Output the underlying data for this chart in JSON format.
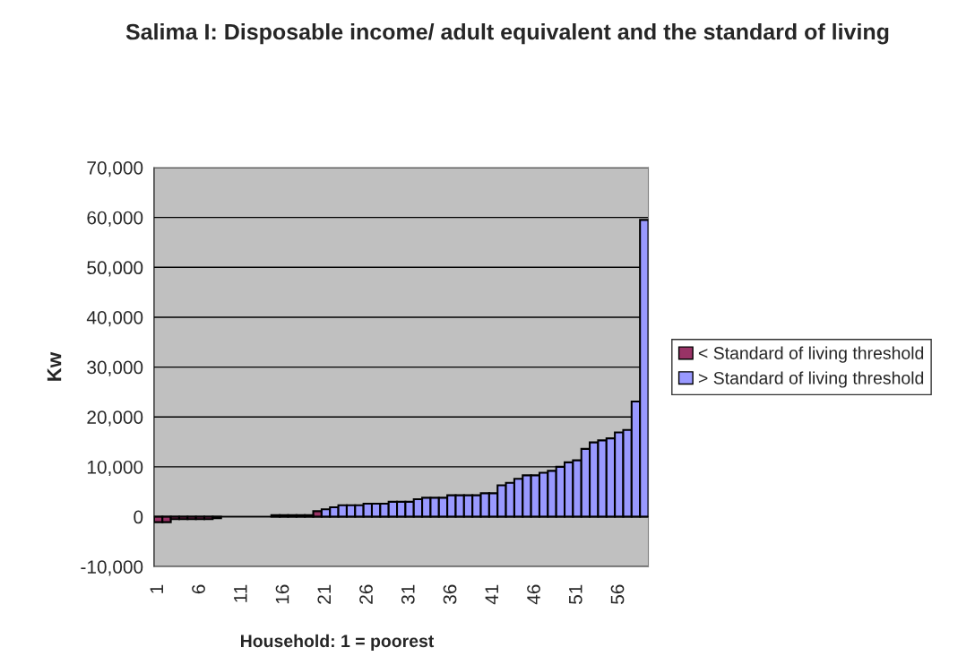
{
  "chart_data": {
    "type": "bar",
    "title": "Salima I: Disposable income/ adult equivalent and the standard of living",
    "xlabel": "Household: 1 = poorest",
    "ylabel": "Kw",
    "categories": [
      "1",
      null,
      null,
      null,
      null,
      "6",
      null,
      null,
      null,
      null,
      "11",
      null,
      null,
      null,
      null,
      "16",
      null,
      null,
      null,
      null,
      "21",
      null,
      null,
      null,
      null,
      "26",
      null,
      null,
      null,
      null,
      "31",
      null,
      null,
      null,
      null,
      "36",
      null,
      null,
      null,
      null,
      "41",
      null,
      null,
      null,
      null,
      "46",
      null,
      null,
      null,
      null,
      "51",
      null,
      null,
      null,
      null,
      "56",
      null,
      null,
      null
    ],
    "series": [
      {
        "name": "< Standard of living threshold",
        "color": "#993366",
        "values": [
          -1100,
          -1100,
          -500,
          -500,
          -500,
          -500,
          -500,
          -300,
          null,
          null,
          null,
          null,
          null,
          null,
          null,
          null,
          null,
          null,
          null,
          1100,
          null,
          null,
          null,
          null,
          null,
          null,
          null,
          null,
          null,
          null,
          null,
          null,
          null,
          null,
          null,
          null,
          null,
          null,
          null,
          null,
          null,
          null,
          null,
          null,
          null,
          null,
          null,
          null,
          null,
          null,
          null,
          null,
          null,
          null,
          null,
          null,
          null,
          null,
          null
        ]
      },
      {
        "name": "> Standard of living threshold",
        "color": "#9999ff",
        "values": [
          null,
          null,
          null,
          null,
          null,
          null,
          null,
          null,
          null,
          null,
          null,
          null,
          null,
          null,
          300,
          300,
          300,
          300,
          300,
          null,
          1500,
          1900,
          2300,
          2300,
          2300,
          2600,
          2600,
          2600,
          3000,
          3000,
          3000,
          3500,
          3800,
          3800,
          3800,
          4300,
          4300,
          4300,
          4300,
          4700,
          4700,
          6300,
          6800,
          7600,
          8300,
          8300,
          8800,
          9200,
          10000,
          10900,
          11300,
          13600,
          14900,
          15300,
          15700,
          16900,
          17400,
          23100,
          59500
        ]
      }
    ],
    "ylim": [
      -10000,
      70000
    ],
    "yticks": [
      {
        "value": -10000,
        "label": "-10,000"
      },
      0,
      {
        "value": 10000,
        "label": "10,000"
      },
      {
        "value": 20000,
        "label": "20,000"
      },
      {
        "value": 30000,
        "label": "30,000"
      },
      {
        "value": 40000,
        "label": "40,000"
      },
      {
        "value": 50000,
        "label": "50,000"
      },
      {
        "value": 60000,
        "label": "60,000"
      },
      {
        "value": 70000,
        "label": "70,000"
      }
    ],
    "grid": "y",
    "legend": "right"
  }
}
